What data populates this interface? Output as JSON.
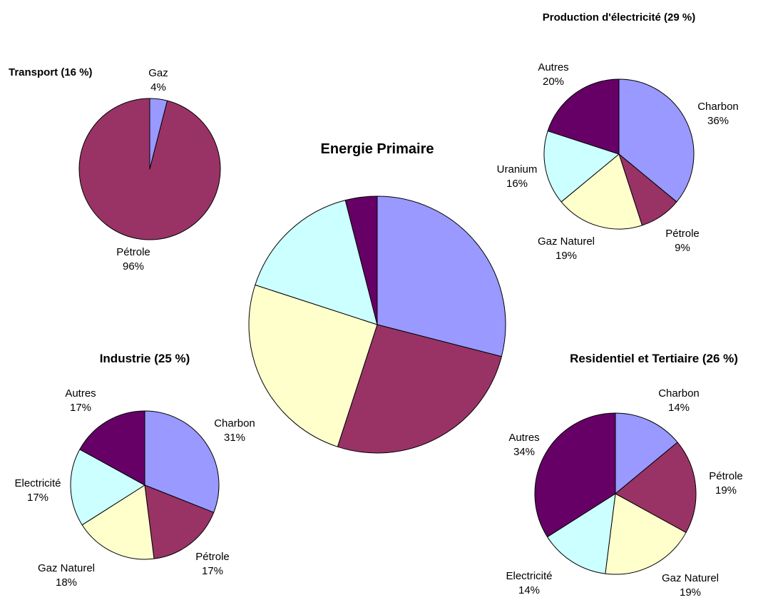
{
  "chart_data": [
    {
      "type": "pie",
      "title": "Energie Primaire",
      "categories": [
        "Charbon",
        "Pétrole",
        "Gaz Naturel",
        "Uranium",
        "Autres"
      ],
      "values": [
        29,
        26,
        25,
        16,
        4
      ],
      "colors": [
        "#9999ff",
        "#993366",
        "#ffffcc",
        "#ccffff",
        "#660066"
      ],
      "labels": [],
      "label_values": []
    },
    {
      "type": "pie",
      "title": "Transport (16 %)",
      "categories": [
        "Gaz",
        "Pétrole"
      ],
      "values": [
        4,
        96
      ],
      "colors": [
        "#9999ff",
        "#993366"
      ],
      "labels": [
        "Gaz",
        "Pétrole"
      ],
      "label_values": [
        "4%",
        "96%"
      ]
    },
    {
      "type": "pie",
      "title": "Production d'électricité (29 %)",
      "categories": [
        "Charbon",
        "Pétrole",
        "Gaz Naturel",
        "Uranium",
        "Autres"
      ],
      "values": [
        36,
        9,
        19,
        16,
        20
      ],
      "colors": [
        "#9999ff",
        "#993366",
        "#ffffcc",
        "#ccffff",
        "#660066"
      ],
      "labels": [
        "Charbon",
        "Pétrole",
        "Gaz Naturel",
        "Uranium",
        "Autres"
      ],
      "label_values": [
        "36%",
        "9%",
        "19%",
        "16%",
        "20%"
      ]
    },
    {
      "type": "pie",
      "title": "Industrie (25 %)",
      "categories": [
        "Charbon",
        "Pétrole",
        "Gaz Naturel",
        "Electricité",
        "Autres"
      ],
      "values": [
        31,
        17,
        18,
        17,
        17
      ],
      "colors": [
        "#9999ff",
        "#993366",
        "#ffffcc",
        "#ccffff",
        "#660066"
      ],
      "labels": [
        "Charbon",
        "Pétrole",
        "Gaz Naturel",
        "Electricité",
        "Autres"
      ],
      "label_values": [
        "31%",
        "17%",
        "18%",
        "17%",
        "17%"
      ]
    },
    {
      "type": "pie",
      "title": "Residentiel et Tertiaire (26 %)",
      "categories": [
        "Charbon",
        "Pétrole",
        "Gaz Naturel",
        "Electricité",
        "Autres"
      ],
      "values": [
        14,
        19,
        19,
        14,
        34
      ],
      "colors": [
        "#9999ff",
        "#993366",
        "#ffffcc",
        "#ccffff",
        "#660066"
      ],
      "labels": [
        "Charbon",
        "Pétrole",
        "Gaz Naturel",
        "Electricité",
        "Autres"
      ],
      "label_values": [
        "14%",
        "19%",
        "19%",
        "14%",
        "34%"
      ]
    }
  ]
}
